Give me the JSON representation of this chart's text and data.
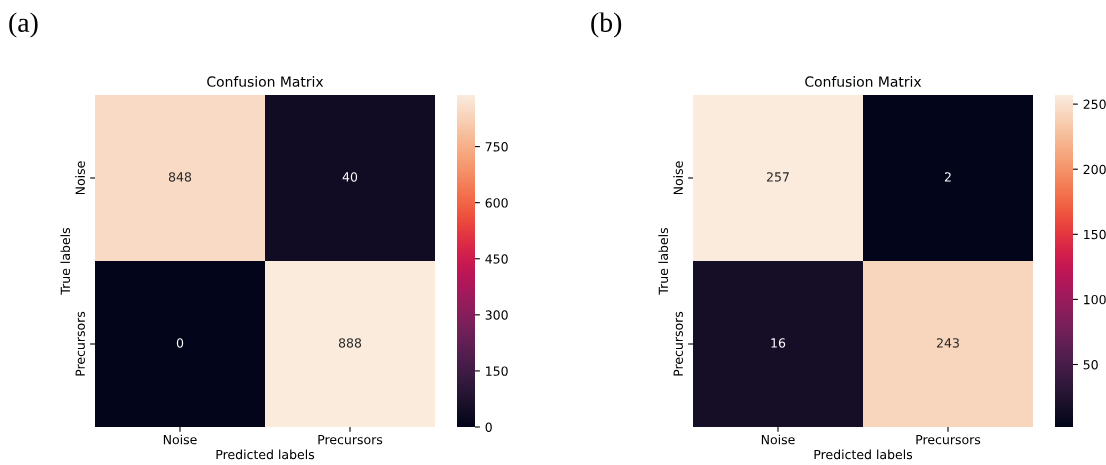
{
  "chart_data": [
    {
      "type": "heatmap",
      "title": "Confusion Matrix",
      "xlabel": "Predicted labels",
      "ylabel": "True labels",
      "categories": [
        "Noise",
        "Precursors"
      ],
      "y_categories": [
        "Noise",
        "Precursors"
      ],
      "cells": [
        [
          848,
          40
        ],
        [
          0,
          888
        ]
      ],
      "clim": [
        0,
        888
      ],
      "cticks": [
        0,
        150,
        300,
        450,
        600,
        750
      ],
      "data_labels": true,
      "annotations": [
        "(a)"
      ]
    },
    {
      "type": "heatmap",
      "title": "Confusion Matrix",
      "xlabel": "Predicted labels",
      "ylabel": "True labels",
      "categories": [
        "Noise",
        "Precursors"
      ],
      "y_categories": [
        "Noise",
        "Precursors"
      ],
      "cells": [
        [
          257,
          2
        ],
        [
          16,
          243
        ]
      ],
      "clim": [
        2,
        257
      ],
      "cticks": [
        50,
        100,
        150,
        200,
        250
      ],
      "data_labels": true,
      "annotations": [
        "(b)"
      ]
    }
  ]
}
